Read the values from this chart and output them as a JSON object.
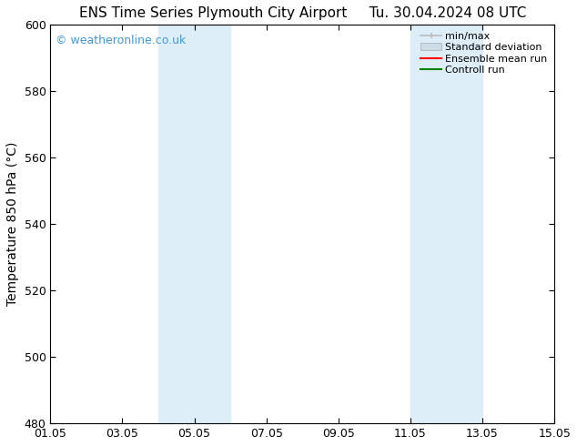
{
  "title_left": "ENS Time Series Plymouth City Airport",
  "title_right": "Tu. 30.04.2024 08 UTC",
  "ylabel": "Temperature 850 hPa (°C)",
  "ylim": [
    480,
    600
  ],
  "yticks": [
    480,
    500,
    520,
    540,
    560,
    580,
    600
  ],
  "xtick_labels": [
    "01.05",
    "03.05",
    "05.05",
    "07.05",
    "09.05",
    "11.05",
    "13.05",
    "15.05"
  ],
  "xtick_positions": [
    0,
    2,
    4,
    6,
    8,
    10,
    12,
    14
  ],
  "xlim": [
    0,
    14
  ],
  "shaded_bands": [
    {
      "x_start": 3.0,
      "x_end": 5.0,
      "color": "#ddeef8"
    },
    {
      "x_start": 10.0,
      "x_end": 12.0,
      "color": "#ddeef8"
    }
  ],
  "watermark_text": "© weatheronline.co.uk",
  "watermark_color": "#4499cc",
  "background_color": "#ffffff",
  "legend_entries": [
    {
      "label": "min/max",
      "color": "#bbbbbb",
      "type": "errorbar"
    },
    {
      "label": "Standard deviation",
      "color": "#ccdde8",
      "type": "patch"
    },
    {
      "label": "Ensemble mean run",
      "color": "red",
      "type": "line"
    },
    {
      "label": "Controll run",
      "color": "green",
      "type": "line"
    }
  ],
  "title_fontsize": 11,
  "ylabel_fontsize": 10,
  "tick_fontsize": 9,
  "legend_fontsize": 8,
  "watermark_fontsize": 9
}
